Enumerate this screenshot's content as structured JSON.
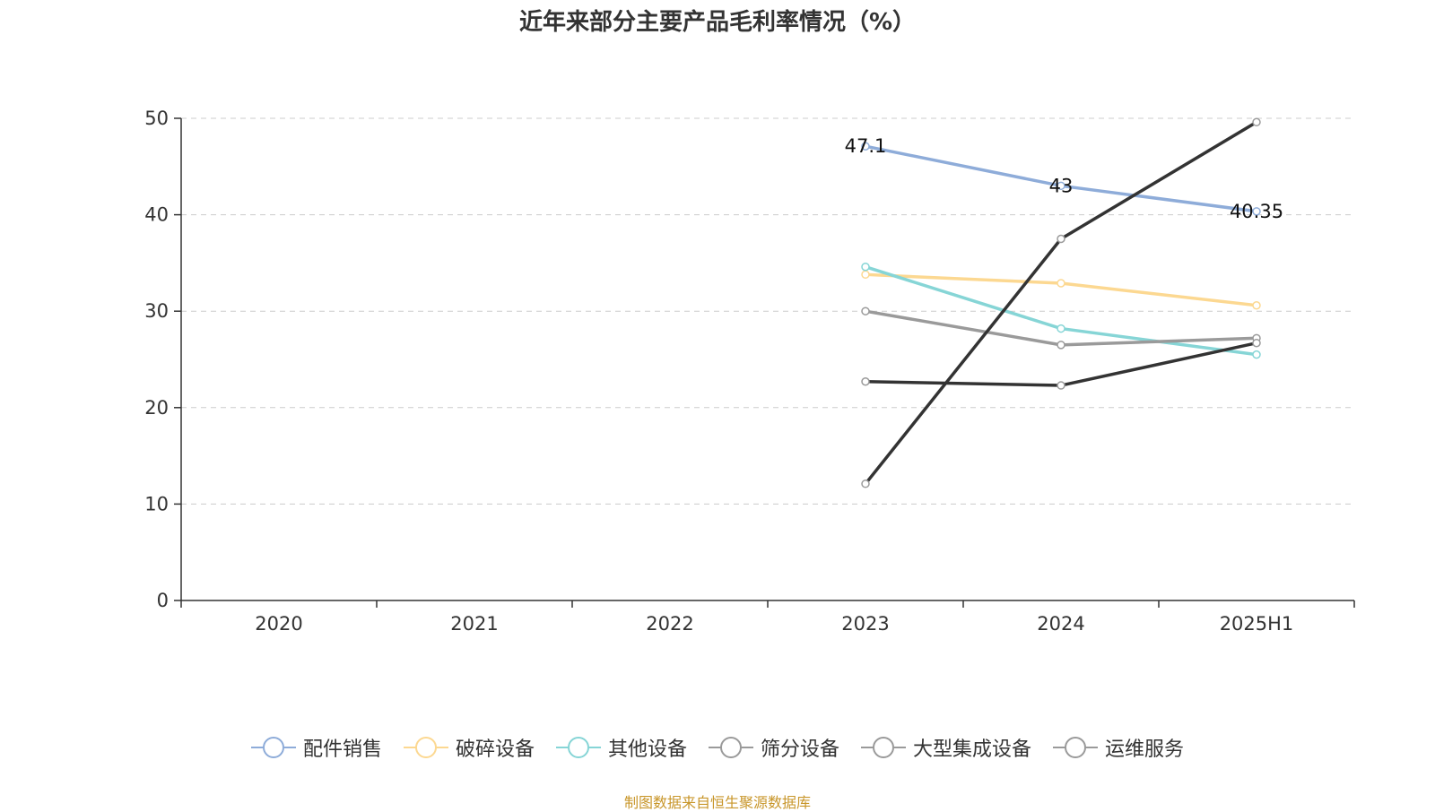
{
  "chart_data": {
    "type": "line",
    "title": "近年来部分主要产品毛利率情况（%）",
    "categories": [
      "2020",
      "2021",
      "2022",
      "2023",
      "2024",
      "2025H1"
    ],
    "ylim": [
      0,
      50
    ],
    "yticks": [
      0,
      10,
      20,
      30,
      40,
      50
    ],
    "grid": true,
    "legend_position": "bottom",
    "series": [
      {
        "name": "配件销售",
        "color": "#8eacd9",
        "values": [
          null,
          null,
          null,
          47.1,
          43,
          40.35
        ],
        "labels": [
          "",
          "",
          "",
          "47.1",
          "43",
          "40.35"
        ]
      },
      {
        "name": "破碎设备",
        "color": "#fcd891",
        "values": [
          null,
          null,
          null,
          33.8,
          32.9,
          30.6
        ]
      },
      {
        "name": "其他设备",
        "color": "#86d5d6",
        "values": [
          null,
          null,
          null,
          34.6,
          28.2,
          25.5
        ]
      },
      {
        "name": "筛分设备",
        "color": "#9a9a9a",
        "values": [
          null,
          null,
          null,
          30.0,
          26.5,
          27.2
        ]
      },
      {
        "name": "大型集成设备",
        "color": "#333333",
        "values": [
          null,
          null,
          null,
          22.7,
          22.3,
          26.7
        ]
      },
      {
        "name": "运维服务",
        "color": "#333333",
        "values": [
          null,
          null,
          null,
          12.1,
          37.5,
          49.6
        ]
      }
    ]
  },
  "source_note": "制图数据来自恒生聚源数据库"
}
